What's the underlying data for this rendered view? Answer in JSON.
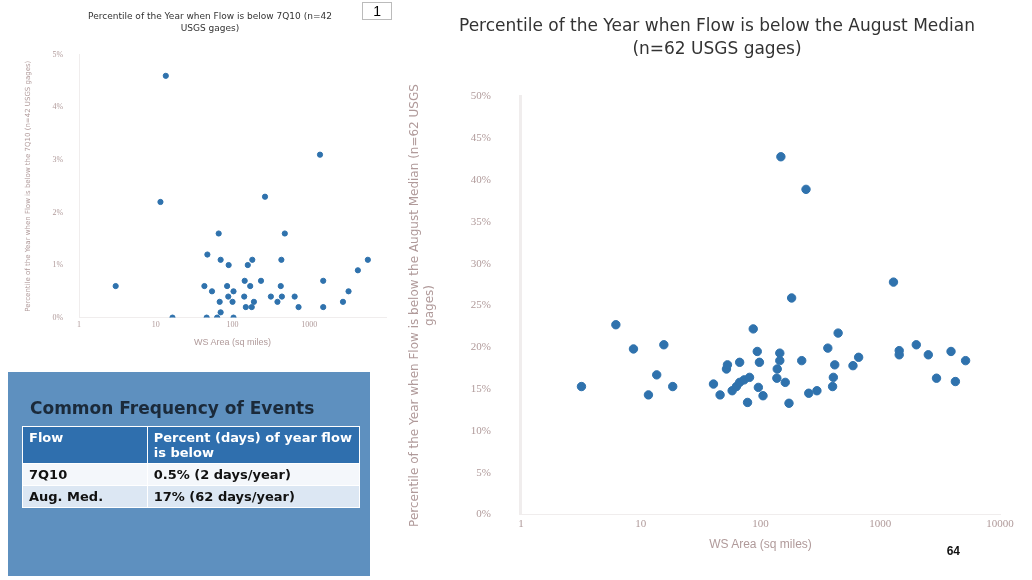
{
  "chart_data": [
    {
      "type": "scatter",
      "title": "Percentile of the Year when Flow is below 7Q10 (n=42 USGS gages)",
      "xlabel": "WS Area (sq miles)",
      "ylabel": "Percentile of the Year when Flow is below the 7Q10 (n=42 USGS gages)",
      "log": "x",
      "marker": "circle",
      "grid": false,
      "xlim": [
        1,
        10000
      ],
      "xticks": [
        1,
        10,
        100,
        1000
      ],
      "ylim": [
        0,
        5
      ],
      "yticks": [
        {
          "value": 0,
          "label": "0%"
        },
        {
          "value": 1,
          "label": "1%"
        },
        {
          "value": 2,
          "label": "2%"
        },
        {
          "value": 3,
          "label": "3%"
        },
        {
          "value": 4,
          "label": "4%"
        },
        {
          "value": 5,
          "label": "5%"
        }
      ],
      "annotations": [
        "1"
      ],
      "series": [
        {
          "color": "#2f72ad",
          "x": [
            13.5,
            1380,
            265,
            11.5,
            66,
            480,
            47,
            70,
            89,
            158,
            181,
            433,
            5800,
            4300,
            3,
            43,
            85,
            144,
            170,
            235,
            425,
            1520,
            3250,
            54,
            103,
            88,
            142,
            316,
            440,
            645,
            68,
            100,
            190,
            385,
            2750,
            149,
            178,
            725,
            1520,
            70,
            16.5,
            46,
            63,
            103
          ],
          "values": [
            4.6,
            3.1,
            2.3,
            2.2,
            1.6,
            1.6,
            1.2,
            1.1,
            1.0,
            1.0,
            1.1,
            1.1,
            1.1,
            0.9,
            0.6,
            0.6,
            0.6,
            0.7,
            0.6,
            0.7,
            0.6,
            0.7,
            0.5,
            0.5,
            0.5,
            0.4,
            0.4,
            0.4,
            0.4,
            0.4,
            0.3,
            0.3,
            0.3,
            0.3,
            0.3,
            0.2,
            0.2,
            0.2,
            0.2,
            0.1,
            0,
            0,
            0,
            0
          ]
        }
      ]
    },
    {
      "type": "scatter",
      "title": "Percentile of the Year when Flow is below the August Median (n=62 USGS gages)",
      "xlabel": "WS Area (sq miles)",
      "ylabel": "Percentile of the Year when Flow is below the August Median (n=62 USGS gages)",
      "log": "x",
      "marker": "circle",
      "grid": false,
      "xlim": [
        1,
        10000
      ],
      "xticks": [
        1,
        10,
        100,
        1000,
        10000
      ],
      "ylim": [
        0,
        50
      ],
      "yticks": [
        {
          "value": 0,
          "label": "0%"
        },
        {
          "value": 5,
          "label": "5%"
        },
        {
          "value": 10,
          "label": "10%"
        },
        {
          "value": 15,
          "label": "15%"
        },
        {
          "value": 20,
          "label": "20%"
        },
        {
          "value": 25,
          "label": "25%"
        },
        {
          "value": 30,
          "label": "30%"
        },
        {
          "value": 35,
          "label": "35%"
        },
        {
          "value": 40,
          "label": "40%"
        },
        {
          "value": 45,
          "label": "45%"
        },
        {
          "value": 50,
          "label": "50%"
        }
      ],
      "annotations": [
        "64"
      ],
      "series": [
        {
          "color": "#2f72ad",
          "x": [
            148,
            240,
            1290,
            182,
            6.2,
            87,
            445,
            8.7,
            15.6,
            13.6,
            3.2,
            18.5,
            11.6,
            40.5,
            46,
            52,
            53,
            67,
            94,
            98,
            58,
            63,
            67,
            73,
            81,
            78,
            96,
            105,
            145,
            145,
            138,
            137,
            161,
            173,
            221,
            253,
            296,
            365,
            417,
            406,
            400,
            592,
            660,
            1440,
            1440,
            2000,
            2520,
            2950,
            3900,
            4240,
            5160
          ],
          "values": [
            42.8,
            38.9,
            27.8,
            25.9,
            22.7,
            22.2,
            21.7,
            19.8,
            20.3,
            16.7,
            15.3,
            15.3,
            14.3,
            15.6,
            14.3,
            17.4,
            17.9,
            18.2,
            19.5,
            18.2,
            14.8,
            15.3,
            15.8,
            16.1,
            16.4,
            13.4,
            15.2,
            14.2,
            19.3,
            18.4,
            17.4,
            16.3,
            15.8,
            13.3,
            18.4,
            14.5,
            14.8,
            19.9,
            17.9,
            16.4,
            15.3,
            17.8,
            18.8,
            19.6,
            19.1,
            20.3,
            19.1,
            16.3,
            19.5,
            15.9,
            18.4
          ]
        }
      ]
    },
    {
      "type": "other",
      "title": "Common Frequency of Events",
      "annotations": [
        "Flow",
        "Percent (days) of year flow is below",
        "7Q10",
        "0.5%  (2 days/year)",
        "Aug. Med.",
        "17%  (62 days/year)"
      ]
    }
  ]
}
